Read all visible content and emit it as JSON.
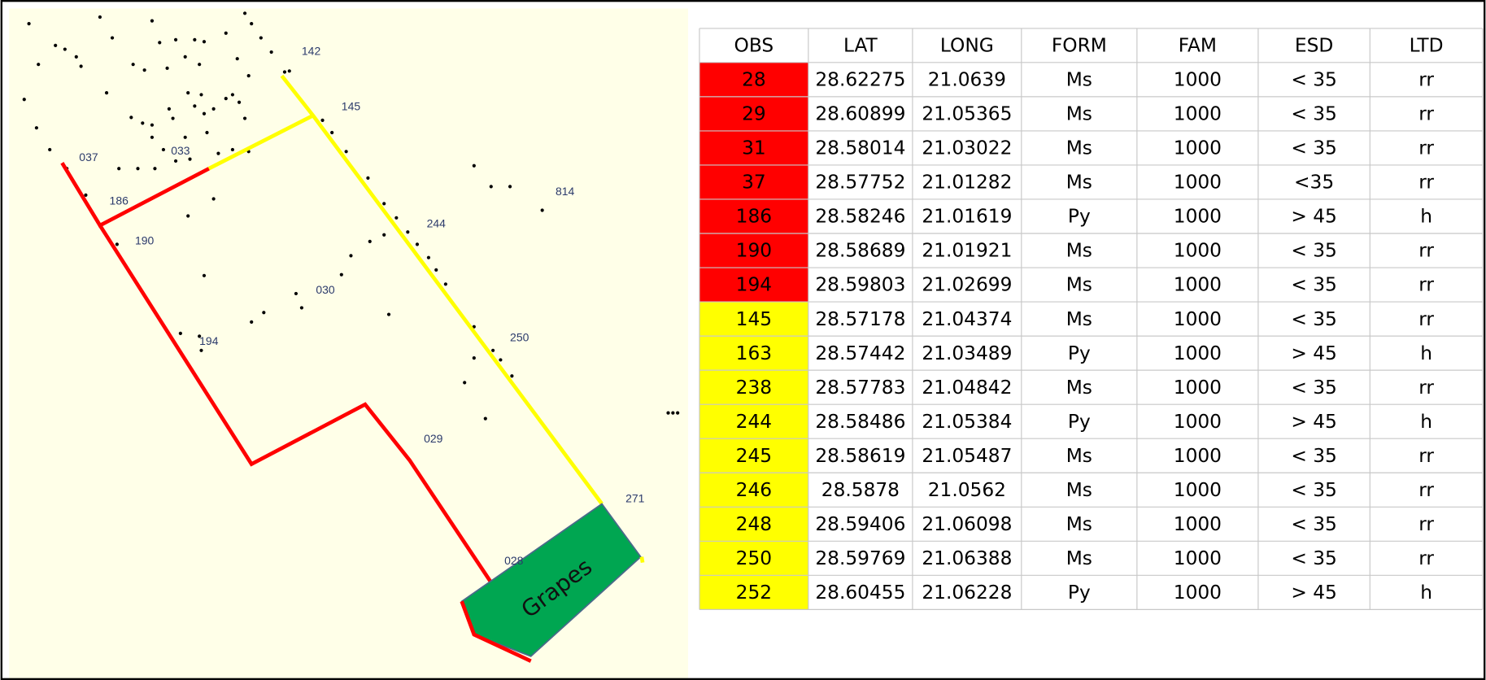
{
  "map": {
    "labels": [
      "142",
      "145",
      "037",
      "033",
      "186",
      "190",
      "814",
      "244",
      "030",
      "194",
      "250",
      "029",
      "271",
      "028"
    ],
    "field": "Grapes"
  },
  "table": {
    "header": [
      "OBS",
      "LAT",
      "LONG",
      "FORM",
      "FAM",
      "ESD",
      "LTD"
    ],
    "rows": [
      [
        "28",
        "28.62275",
        "21.0639",
        "Ms",
        "1000",
        "< 35",
        "rr"
      ],
      [
        "29",
        "28.60899",
        "21.05365",
        "Ms",
        "1000",
        "< 35",
        "rr"
      ],
      [
        "31",
        "28.58014",
        "21.03022",
        "Ms",
        "1000",
        "< 35",
        "rr"
      ],
      [
        "37",
        "28.57752",
        "21.01282",
        "Ms",
        "1000",
        "<35",
        "rr"
      ],
      [
        "186",
        "28.58246",
        "21.01619",
        "Py",
        "1000",
        "> 45",
        "h"
      ],
      [
        "190",
        "28.58689",
        "21.01921",
        "Ms",
        "1000",
        "< 35",
        "rr"
      ],
      [
        "194",
        "28.59803",
        "21.02699",
        "Ms",
        "1000",
        "< 35",
        "rr"
      ],
      [
        "145",
        "28.57178",
        "21.04374",
        "Ms",
        "1000",
        "< 35",
        "rr"
      ],
      [
        "163",
        "28.57442",
        "21.03489",
        "Py",
        "1000",
        "> 45",
        "h"
      ],
      [
        "238",
        "28.57783",
        "21.04842",
        "Ms",
        "1000",
        "< 35",
        "rr"
      ],
      [
        "244",
        "28.58486",
        "21.05384",
        "Py",
        "1000",
        "> 45",
        "h"
      ],
      [
        "245",
        "28.58619",
        "21.05487",
        "Ms",
        "1000",
        "< 35",
        "rr"
      ],
      [
        "246",
        "28.5878",
        "21.0562",
        "Ms",
        "1000",
        "< 35",
        "rr"
      ],
      [
        "248",
        "28.59406",
        "21.06098",
        "Ms",
        "1000",
        "< 35",
        "rr"
      ],
      [
        "250",
        "28.59769",
        "21.06388",
        "Ms",
        "1000",
        "< 35",
        "rr"
      ],
      [
        "252",
        "28.60455",
        "21.06228",
        "Py",
        "1000",
        "> 45",
        "h"
      ]
    ],
    "row_colors": [
      "#ff0000",
      "#ff0000",
      "#ff0000",
      "#ff0000",
      "#ff0000",
      "#ff0000",
      "#ff0000",
      "#ffff00",
      "#ffff00",
      "#ffff00",
      "#ffff00",
      "#ffff00",
      "#ffff00",
      "#ffff00",
      "#ffff00",
      "#ffff00"
    ]
  }
}
